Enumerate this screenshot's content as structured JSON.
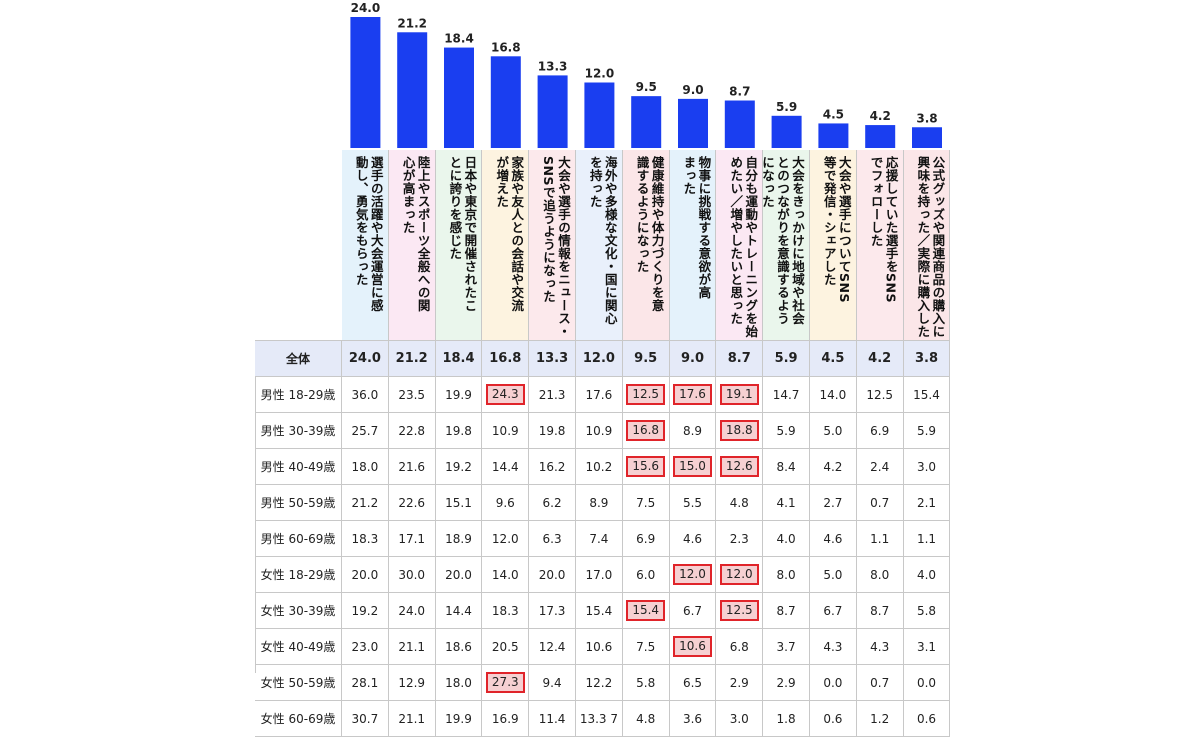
{
  "colors": {
    "bar": "#1a3ef0",
    "highlight_border": "#e0242a",
    "highlight_fill": "#f6d0d2",
    "total_row_bg": "#e5eaf8",
    "header_backgrounds": [
      "#e4f2fb",
      "#fbe8f3",
      "#eaf6ec",
      "#fdf3e0",
      "#fce9ec",
      "#e9f0fb",
      "#fbe6e8",
      "#e4f2fb",
      "#fbe8f3",
      "#eaf6ec",
      "#fdf3e0",
      "#fce9ec",
      "#fbe6e8"
    ]
  },
  "chart_data": {
    "type": "bar",
    "categories": [
      "選手の活躍や大会運営に感動し、勇気をもらった",
      "陸上やスポーツ全般への関心が高まった",
      "日本や東京で開催されたことに誇りを感じた",
      "家族や友人との会話や交流が増えた",
      "大会や選手の情報をニュース・SNSで追うようになった",
      "海外や多様な文化・国に関心を持った",
      "健康維持や体力づくりを意識するようになった",
      "物事に挑戦する意欲が高まった",
      "自分も運動やトレーニングを始めたい／増やしたいと思った",
      "大会をきっかけに地域や社会とのつながりを意識するようになった",
      "大会や選手についてSNS等で発信・シェアした",
      "応援していた選手をSNSでフォローした",
      "公式グッズや関連商品の購入に興味を持った／実際に購入した"
    ],
    "header_lines": [
      [
        "選手の活躍や大会運営に感",
        "動し、勇気をもらった"
      ],
      [
        "陸上やスポーツ全般への関",
        "心が高まった"
      ],
      [
        "日本や東京で開催されたこ",
        "とに誇りを感じた"
      ],
      [
        "家族や友人との会話や交流",
        "が増えた"
      ],
      [
        "大会や選手の情報をニュース・",
        "SNSで追うようになった"
      ],
      [
        "海外や多様な文化・国に関心",
        "を持った"
      ],
      [
        "健康維持や体力づくりを意",
        "識するようになった"
      ],
      [
        "物事に挑戦する意欲が高",
        "まった"
      ],
      [
        "自分も運動やトレーニングを始",
        "めたい／増やしたいと思った"
      ],
      [
        "大会をきっかけに地域や社会",
        "とのつながりを意識するよう",
        "になった"
      ],
      [
        "大会や選手についてSNS",
        "等で発信・シェアした"
      ],
      [
        "応援していた選手をSNS",
        "でフォローした"
      ],
      [
        "公式グッズや関連商品の購入に",
        "興味を持った／実際に購入した"
      ]
    ],
    "values": [
      24.0,
      21.2,
      18.4,
      16.8,
      13.3,
      12.0,
      9.5,
      9.0,
      8.7,
      5.9,
      4.5,
      4.2,
      3.8
    ],
    "value_labels": [
      "24.0",
      "21.2",
      "18.4",
      "16.8",
      "13.3",
      "12.0",
      "9.5",
      "9.0",
      "8.7",
      "5.9",
      "4.5",
      "4.2",
      "3.8"
    ],
    "ylim": [
      0,
      24
    ],
    "table": {
      "rows": [
        {
          "label": "全体",
          "values": [
            "24.0",
            "21.2",
            "18.4",
            "16.8",
            "13.3",
            "12.0",
            "9.5",
            "9.0",
            "8.7",
            "5.9",
            "4.5",
            "4.2",
            "3.8"
          ],
          "highlight": []
        },
        {
          "label": "男性 18-29歳",
          "values": [
            "36.0",
            "23.5",
            "19.9",
            "24.3",
            "21.3",
            "17.6",
            "12.5",
            "17.6",
            "19.1",
            "14.7",
            "14.0",
            "12.5",
            "15.4"
          ],
          "highlight": [
            3,
            6,
            7,
            8
          ]
        },
        {
          "label": "男性 30-39歳",
          "values": [
            "25.7",
            "22.8",
            "19.8",
            "10.9",
            "19.8",
            "10.9",
            "16.8",
            "8.9",
            "18.8",
            "5.9",
            "5.0",
            "6.9",
            "5.9"
          ],
          "highlight": [
            6,
            8
          ]
        },
        {
          "label": "男性 40-49歳",
          "values": [
            "18.0",
            "21.6",
            "19.2",
            "14.4",
            "16.2",
            "10.2",
            "15.6",
            "15.0",
            "12.6",
            "8.4",
            "4.2",
            "2.4",
            "3.0"
          ],
          "highlight": [
            6,
            7,
            8
          ]
        },
        {
          "label": "男性 50-59歳",
          "values": [
            "21.2",
            "22.6",
            "15.1",
            "9.6",
            "6.2",
            "8.9",
            "7.5",
            "5.5",
            "4.8",
            "4.1",
            "2.7",
            "0.7",
            "2.1"
          ],
          "highlight": []
        },
        {
          "label": "男性 60-69歳",
          "values": [
            "18.3",
            "17.1",
            "18.9",
            "12.0",
            "6.3",
            "7.4",
            "6.9",
            "4.6",
            "2.3",
            "4.0",
            "4.6",
            "1.1",
            "1.1"
          ],
          "highlight": []
        },
        {
          "label": "女性 18-29歳",
          "values": [
            "20.0",
            "30.0",
            "20.0",
            "14.0",
            "20.0",
            "17.0",
            "6.0",
            "12.0",
            "12.0",
            "8.0",
            "5.0",
            "8.0",
            "4.0"
          ],
          "highlight": [
            7,
            8
          ]
        },
        {
          "label": "女性 30-39歳",
          "values": [
            "19.2",
            "24.0",
            "14.4",
            "18.3",
            "17.3",
            "15.4",
            "15.4",
            "6.7",
            "12.5",
            "8.7",
            "6.7",
            "8.7",
            "5.8"
          ],
          "highlight": [
            6,
            8
          ]
        },
        {
          "label": "女性 40-49歳",
          "values": [
            "23.0",
            "21.1",
            "18.6",
            "20.5",
            "12.4",
            "10.6",
            "7.5",
            "10.6",
            "6.8",
            "3.7",
            "4.3",
            "4.3",
            "3.1"
          ],
          "highlight": [
            7
          ]
        },
        {
          "label": "女性 50-59歳",
          "values": [
            "28.1",
            "12.9",
            "18.0",
            "27.3",
            "9.4",
            "12.2",
            "5.8",
            "6.5",
            "2.9",
            "2.9",
            "0.0",
            "0.7",
            "0.0"
          ],
          "highlight": [
            3
          ]
        },
        {
          "label": "女性 60-69歳",
          "values": [
            "30.7",
            "21.1",
            "19.9",
            "16.9",
            "11.4",
            "13.3 7",
            "4.8",
            "3.6",
            "3.0",
            "1.8",
            "0.6",
            "1.2",
            "0.6"
          ],
          "highlight": []
        }
      ]
    }
  }
}
